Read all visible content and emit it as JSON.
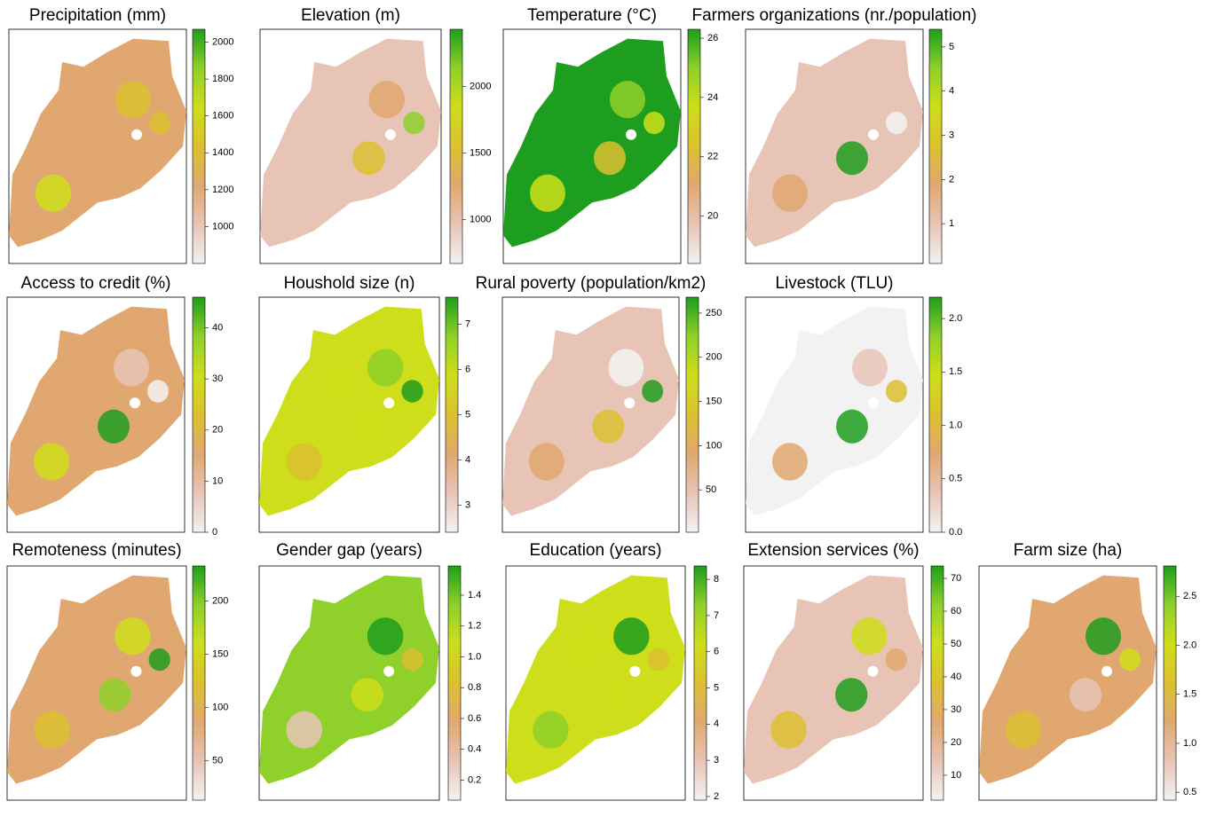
{
  "colormap": [
    "#f2f2f2",
    "#e8c4b6",
    "#e0a870",
    "#dcc030",
    "#cede1a",
    "#8fd02a",
    "#1e9e1e"
  ],
  "panels": [
    {
      "title": "Precipitation (mm)",
      "range": [
        800,
        2070
      ],
      "ticks": [
        1000,
        1200,
        1400,
        1600,
        1800,
        2000
      ]
    },
    {
      "title": "Elevation (m)",
      "range": [
        670,
        2430
      ],
      "ticks": [
        1000,
        1500,
        2000
      ]
    },
    {
      "title": "Temperature (°C)",
      "range": [
        18.4,
        26.3
      ],
      "ticks": [
        20,
        22,
        24,
        26
      ]
    },
    {
      "title": "Farmers organizations (nr./population)",
      "range": [
        0.1,
        5.4
      ],
      "ticks": [
        1,
        2,
        3,
        4,
        5
      ]
    },
    {
      "title": "Access to credit (%)",
      "range": [
        0,
        46
      ],
      "ticks": [
        0,
        10,
        20,
        30,
        40
      ]
    },
    {
      "title": "Houshold size (n)",
      "range": [
        2.4,
        7.6
      ],
      "ticks": [
        3,
        4,
        5,
        6,
        7
      ]
    },
    {
      "title": "Rural poverty (population/km2)",
      "range": [
        2,
        268
      ],
      "ticks": [
        50,
        100,
        150,
        200,
        250
      ]
    },
    {
      "title": "Livestock (TLU)",
      "range": [
        0,
        2.2
      ],
      "ticks": [
        {
          "value": 0,
          "label": "0.0"
        },
        0.5,
        {
          "value": 1,
          "label": "1.0"
        },
        1.5,
        {
          "value": 2,
          "label": "2.0"
        }
      ]
    },
    {
      "title": "Remoteness (minutes)",
      "range": [
        13,
        233
      ],
      "ticks": [
        50,
        100,
        150,
        200
      ]
    },
    {
      "title": "Gender gap (years)",
      "range": [
        0.07,
        1.59
      ],
      "ticks": [
        0.2,
        0.4,
        0.6,
        0.8,
        {
          "value": 1,
          "label": "1.0"
        },
        1.2,
        1.4
      ]
    },
    {
      "title": "Education (years)",
      "range": [
        1.9,
        8.37
      ],
      "ticks": [
        2,
        3,
        4,
        5,
        6,
        7,
        8
      ]
    },
    {
      "title": "Extension services (%)",
      "range": [
        2.4,
        73.8
      ],
      "ticks": [
        10,
        20,
        30,
        40,
        50,
        60,
        70
      ]
    },
    {
      "title": "Farm size (ha)",
      "range": [
        0.42,
        2.81
      ],
      "ticks": [
        0.5,
        {
          "value": 1,
          "label": "1.0"
        },
        1.5,
        {
          "value": 2,
          "label": "2.0"
        },
        2.5
      ]
    }
  ]
}
